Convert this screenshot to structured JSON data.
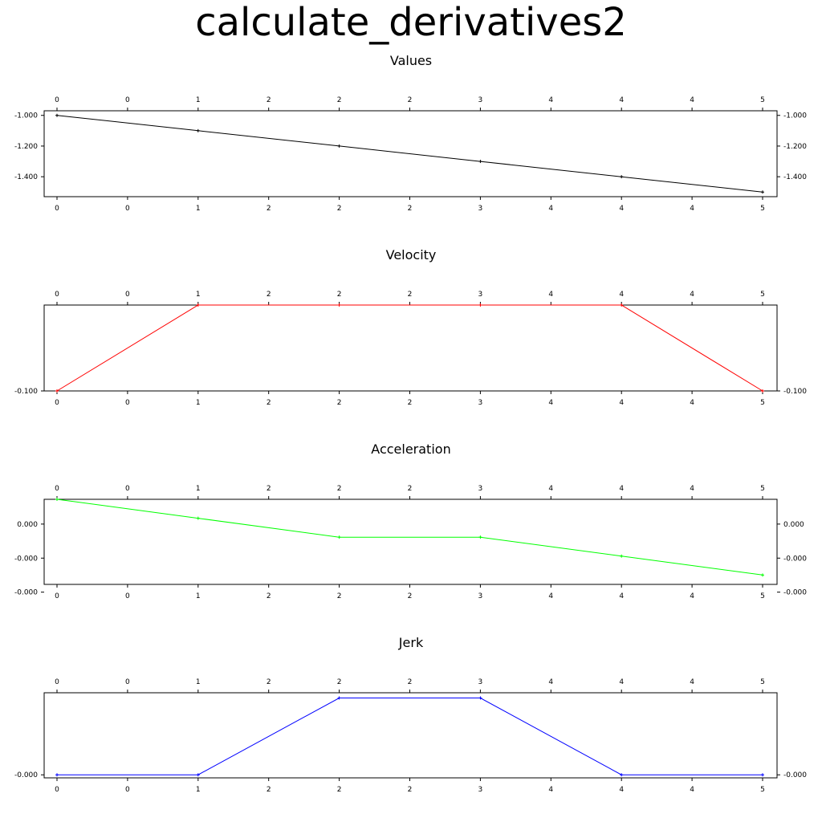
{
  "title": "calculate_derivatives2",
  "chart_data": [
    {
      "type": "line",
      "title": "Values",
      "color": "#000000",
      "x": [
        0,
        1,
        2,
        3,
        4,
        5
      ],
      "y": [
        -1.0,
        -1.1,
        -1.2,
        -1.3,
        -1.4,
        -1.5
      ],
      "ylim": [
        -1.53,
        -0.97
      ],
      "xtick_labels": [
        "0",
        "0",
        "1",
        "2",
        "2",
        "2",
        "3",
        "4",
        "4",
        "4",
        "5"
      ],
      "ytick_values": [
        -1.0,
        -1.2,
        -1.4
      ],
      "ytick_labels": [
        "-1.000",
        "-1.200",
        "-1.400"
      ]
    },
    {
      "type": "line",
      "title": "Velocity",
      "color": "#ff0000",
      "x": [
        0,
        1,
        2,
        3,
        4,
        5
      ],
      "y": [
        -0.1,
        0.0,
        0.0,
        0.0,
        0.0,
        -0.1
      ],
      "ylim": [
        -0.1,
        0.0
      ],
      "xtick_labels": [
        "0",
        "0",
        "1",
        "2",
        "2",
        "2",
        "3",
        "4",
        "4",
        "4",
        "5"
      ],
      "ytick_values": [
        -0.1
      ],
      "ytick_labels": [
        "-0.100"
      ]
    },
    {
      "type": "line",
      "title": "Acceleration",
      "color": "#00ff00",
      "x": [
        0,
        1,
        2,
        3,
        4,
        5
      ],
      "y": [
        4e-05,
        2.22e-05,
        4.4e-06,
        4.4e-06,
        -1.34e-05,
        -3.12e-05
      ],
      "ylim": [
        -4e-05,
        4e-05
      ],
      "xtick_labels": [
        "0",
        "0",
        "1",
        "2",
        "2",
        "2",
        "3",
        "4",
        "4",
        "4",
        "5"
      ],
      "ytick_values": [
        1.67e-05,
        -1.53e-05,
        -4.73e-05
      ],
      "ytick_labels": [
        "0.000",
        "-0.000",
        "-0.000"
      ]
    },
    {
      "type": "line",
      "title": "Jerk",
      "color": "#0000ff",
      "x": [
        0,
        1,
        2,
        3,
        4,
        5
      ],
      "y": [
        -1.78e-05,
        -1.78e-05,
        0.0,
        0.0,
        -1.78e-05,
        -1.78e-05
      ],
      "ylim": [
        -1.85e-05,
        1.2e-06
      ],
      "xtick_labels": [
        "0",
        "0",
        "1",
        "2",
        "2",
        "2",
        "3",
        "4",
        "4",
        "4",
        "5"
      ],
      "ytick_values": [
        -1.78e-05
      ],
      "ytick_labels": [
        "-0.000"
      ]
    }
  ]
}
